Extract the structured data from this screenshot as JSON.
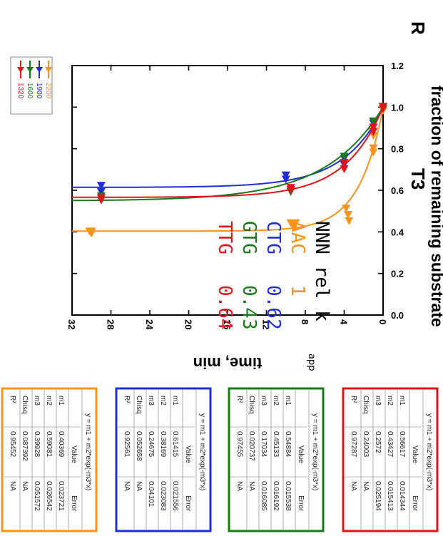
{
  "chart_data": {
    "type": "scatter",
    "title": "",
    "xlabel": "time, min",
    "ylabel": "fraction of remaining substrate",
    "xlim": [
      0,
      32
    ],
    "ylim": [
      0,
      1.2
    ],
    "xticks": [
      "0",
      "4",
      "8",
      "12",
      "16",
      "20",
      "24",
      "28",
      "32"
    ],
    "yticks": [
      "0.0",
      "0.2",
      "0.4",
      "0.6",
      "0.8",
      "1.0",
      "1.2"
    ],
    "panel_letter": "R",
    "panel_label": "T3",
    "orientation": "rotated 90° clockwise",
    "legend": {
      "placement": "top-right",
      "entries": [
        "2200",
        "1900",
        "1600",
        "1320"
      ]
    },
    "annotation": {
      "header_prefix": "NNN  rel k",
      "header_sub": "app",
      "rows": [
        {
          "codon": "AAC",
          "value": "1",
          "color": "#f7941d"
        },
        {
          "codon": "CTG",
          "value": "0.62",
          "color": "#1f2fd1"
        },
        {
          "codon": "GTG",
          "value": "0.43",
          "color": "#1a7a1a"
        },
        {
          "codon": "TTG",
          "value": "0.64",
          "color": "#e0141b"
        }
      ]
    },
    "series": [
      {
        "name": "2200",
        "color": "#f7941d",
        "fit": {
          "m1": 0.40369,
          "m2": 0.59081,
          "m3": 0.39928
        },
        "points": [
          [
            0,
            0.98
          ],
          [
            0,
            1.0
          ],
          [
            0,
            1.0
          ],
          [
            1,
            0.78
          ],
          [
            1,
            0.8
          ],
          [
            1,
            0.86
          ],
          [
            3.5,
            0.45
          ],
          [
            3.6,
            0.48
          ],
          [
            3.8,
            0.51
          ],
          [
            9,
            0.44
          ],
          [
            9.2,
            0.42
          ],
          [
            9.5,
            0.44
          ],
          [
            30,
            0.4
          ],
          [
            30,
            0.39
          ],
          [
            30.2,
            0.4
          ]
        ]
      },
      {
        "name": "1900",
        "color": "#1f2fd1",
        "fit": {
          "m1": 0.61415,
          "m2": 0.38169,
          "m3": 0.24675
        },
        "points": [
          [
            0,
            1.0
          ],
          [
            1,
            0.88
          ],
          [
            1,
            0.92
          ],
          [
            4,
            0.72
          ],
          [
            4,
            0.75
          ],
          [
            10,
            0.65
          ],
          [
            10,
            0.67
          ],
          [
            29,
            0.59
          ],
          [
            29,
            0.62
          ]
        ]
      },
      {
        "name": "1600",
        "color": "#1a7a1a",
        "fit": {
          "m1": 0.54884,
          "m2": 0.45133,
          "m3": 0.17034
        },
        "points": [
          [
            0,
            1.0
          ],
          [
            1,
            0.9
          ],
          [
            1,
            0.93
          ],
          [
            4,
            0.73
          ],
          [
            4,
            0.76
          ],
          [
            9.5,
            0.59
          ],
          [
            9.5,
            0.6
          ],
          [
            29,
            0.57
          ],
          [
            29,
            0.56
          ]
        ]
      },
      {
        "name": "1320",
        "color": "#e0141b",
        "fit": {
          "m1": 0.56617,
          "m2": 0.43427,
          "m3": 0.2572
        },
        "points": [
          [
            0,
            1.0
          ],
          [
            0,
            0.99
          ],
          [
            1,
            0.88
          ],
          [
            1,
            0.9
          ],
          [
            4,
            0.7
          ],
          [
            4,
            0.73
          ],
          [
            9.5,
            0.61
          ],
          [
            9.5,
            0.6
          ],
          [
            29,
            0.55
          ],
          [
            29,
            0.56
          ]
        ]
      }
    ]
  },
  "fit_tables": [
    {
      "color": "#f7941d",
      "equation": "y = m1 + m2*exp(-m3*x)",
      "headers": [
        "",
        "Value",
        "Error"
      ],
      "rows": [
        [
          "m1",
          "0.40369",
          "0.023721"
        ],
        [
          "m2",
          "0.59081",
          "0.026542"
        ],
        [
          "m3",
          "0.39928",
          "0.051572"
        ],
        [
          "Chisq",
          "0.087392",
          "NA"
        ],
        [
          "R²",
          "0.95452",
          "NA"
        ]
      ]
    },
    {
      "color": "#1f2fd1",
      "equation": "y = m1 + m2*exp(-m3*x)",
      "headers": [
        "",
        "Value",
        "Error"
      ],
      "rows": [
        [
          "m1",
          "0.61415",
          "0.021556"
        ],
        [
          "m2",
          "0.38169",
          "0.023083"
        ],
        [
          "m3",
          "0.24675",
          "0.04101"
        ],
        [
          "Chisq",
          "0.052658",
          "NA"
        ],
        [
          "R²",
          "0.92561",
          "NA"
        ]
      ]
    },
    {
      "color": "#1a7a1a",
      "equation": "y = m1 + m2*exp(-m3*x)",
      "headers": [
        "",
        "Value",
        "Error"
      ],
      "rows": [
        [
          "m1",
          "0.54884",
          "0.015538"
        ],
        [
          "m2",
          "0.45133",
          "0.016192"
        ],
        [
          "m3",
          "0.17034",
          "0.016085"
        ],
        [
          "Chisq",
          "0.020737",
          "NA"
        ],
        [
          "R²",
          "0.97455",
          "NA"
        ]
      ]
    },
    {
      "color": "#e0141b",
      "equation": "y = m1 + m2*exp(-m3*x)",
      "headers": [
        "",
        "Value",
        "Error"
      ],
      "rows": [
        [
          "m1",
          "0.56617",
          "0.014344"
        ],
        [
          "m2",
          "0.43427",
          "0.015413"
        ],
        [
          "m3",
          "0.2572",
          "0.025194"
        ],
        [
          "Chisq",
          "0.24003",
          "NA"
        ],
        [
          "R²",
          "0.97287",
          "NA"
        ]
      ]
    }
  ]
}
